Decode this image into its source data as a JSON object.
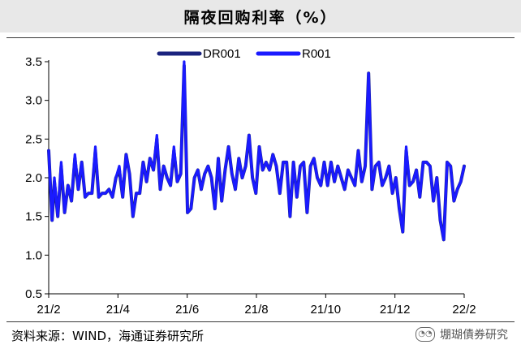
{
  "title": "隔夜回购利率（%）",
  "source": "资料来源：WIND，海通证券研究所",
  "watermark": "堋瑚債券研究",
  "chart_data": {
    "type": "line",
    "x_ticks": [
      "21/2",
      "21/4",
      "21/6",
      "21/8",
      "21/10",
      "21/12",
      "22/2"
    ],
    "y_ticks": [
      "0.5",
      "1.0",
      "1.5",
      "2.0",
      "2.5",
      "3.0",
      "3.5"
    ],
    "ylim": [
      0.5,
      3.5
    ],
    "x_domain": [
      "2021-02-01",
      "2022-02-01"
    ],
    "legend_position": "top-center",
    "x": [
      "2021-02-01",
      "2021-02-04",
      "2021-02-06",
      "2021-02-09",
      "2021-02-12",
      "2021-02-15",
      "2021-02-18",
      "2021-02-21",
      "2021-02-24",
      "2021-02-27",
      "2021-03-02",
      "2021-03-05",
      "2021-03-08",
      "2021-03-11",
      "2021-03-14",
      "2021-03-17",
      "2021-03-20",
      "2021-03-23",
      "2021-03-26",
      "2021-03-29",
      "2021-04-01",
      "2021-04-04",
      "2021-04-07",
      "2021-04-10",
      "2021-04-13",
      "2021-04-16",
      "2021-04-19",
      "2021-04-22",
      "2021-04-25",
      "2021-04-28",
      "2021-05-01",
      "2021-05-04",
      "2021-05-07",
      "2021-05-10",
      "2021-05-13",
      "2021-05-16",
      "2021-05-19",
      "2021-05-22",
      "2021-05-25",
      "2021-05-28",
      "2021-05-31",
      "2021-06-03",
      "2021-06-06",
      "2021-06-09",
      "2021-06-12",
      "2021-06-15",
      "2021-06-18",
      "2021-06-21",
      "2021-06-24",
      "2021-06-27",
      "2021-06-30",
      "2021-07-03",
      "2021-07-06",
      "2021-07-09",
      "2021-07-12",
      "2021-07-15",
      "2021-07-18",
      "2021-07-21",
      "2021-07-24",
      "2021-07-27",
      "2021-07-30",
      "2021-08-02",
      "2021-08-05",
      "2021-08-08",
      "2021-08-11",
      "2021-08-14",
      "2021-08-17",
      "2021-08-20",
      "2021-08-23",
      "2021-08-26",
      "2021-08-29",
      "2021-09-01",
      "2021-09-04",
      "2021-09-07",
      "2021-09-10",
      "2021-09-13",
      "2021-09-16",
      "2021-09-19",
      "2021-09-22",
      "2021-09-25",
      "2021-09-28",
      "2021-10-01",
      "2021-10-04",
      "2021-10-07",
      "2021-10-10",
      "2021-10-13",
      "2021-10-16",
      "2021-10-19",
      "2021-10-22",
      "2021-10-25",
      "2021-10-28",
      "2021-10-31",
      "2021-11-03",
      "2021-11-06",
      "2021-11-09",
      "2021-11-12",
      "2021-11-15",
      "2021-11-18",
      "2021-11-21",
      "2021-11-24",
      "2021-11-27",
      "2021-11-30",
      "2021-12-03",
      "2021-12-06",
      "2021-12-09",
      "2021-12-12",
      "2021-12-15",
      "2021-12-18",
      "2021-12-21",
      "2021-12-24",
      "2021-12-27",
      "2021-12-30",
      "2022-01-02",
      "2022-01-05",
      "2022-01-08",
      "2022-01-11",
      "2022-01-14",
      "2022-01-17",
      "2022-01-20",
      "2022-01-23",
      "2022-01-26",
      "2022-01-29",
      "2022-02-01"
    ],
    "series": [
      {
        "name": "DR001",
        "color": "#1a237e",
        "values": [
          2.35,
          1.45,
          1.95,
          1.5,
          2.15,
          1.55,
          1.9,
          1.7,
          2.25,
          1.85,
          2.2,
          1.75,
          1.8,
          1.8,
          2.35,
          1.75,
          1.8,
          1.8,
          1.85,
          1.75,
          2.0,
          2.1,
          1.75,
          2.3,
          2.05,
          1.5,
          1.8,
          1.8,
          2.2,
          1.95,
          2.25,
          2.1,
          2.5,
          1.85,
          2.15,
          2.0,
          1.9,
          2.35,
          1.95,
          2.05,
          3.45,
          1.55,
          1.6,
          2.0,
          2.1,
          1.85,
          2.05,
          2.15,
          2.0,
          1.6,
          2.25,
          1.7,
          2.1,
          2.4,
          2.05,
          1.85,
          2.25,
          2.0,
          2.15,
          2.55,
          2.0,
          1.8,
          2.4,
          2.1,
          2.2,
          2.1,
          2.3,
          2.15,
          1.8,
          2.2,
          2.2,
          1.5,
          2.2,
          1.75,
          2.15,
          2.2,
          1.55,
          2.15,
          2.25,
          2.0,
          1.9,
          2.2,
          1.9,
          2.2,
          1.95,
          2.15,
          2.0,
          1.85,
          2.1,
          2.0,
          1.9,
          2.35,
          1.95,
          2.15,
          3.35,
          1.85,
          2.15,
          2.2,
          1.9,
          2.0,
          2.15,
          1.8,
          2.0,
          1.6,
          1.3,
          2.35,
          1.9,
          1.95,
          2.1,
          1.75,
          2.2,
          2.2,
          2.15,
          1.7,
          2.0,
          1.45,
          1.2,
          2.2,
          2.15,
          1.7,
          1.85,
          1.95,
          2.15
        ]
      },
      {
        "name": "R001",
        "color": "#1a1aff",
        "values": [
          2.35,
          1.45,
          2.0,
          1.5,
          2.2,
          1.55,
          1.9,
          1.7,
          2.3,
          1.85,
          2.2,
          1.75,
          1.8,
          1.8,
          2.4,
          1.75,
          1.8,
          1.8,
          1.85,
          1.75,
          2.0,
          2.15,
          1.75,
          2.3,
          2.05,
          1.5,
          1.8,
          1.8,
          2.2,
          1.95,
          2.25,
          2.1,
          2.55,
          1.85,
          2.15,
          2.0,
          1.9,
          2.4,
          1.95,
          2.05,
          3.5,
          1.55,
          1.6,
          2.0,
          2.1,
          1.85,
          2.05,
          2.15,
          2.0,
          1.6,
          2.25,
          1.7,
          2.1,
          2.4,
          2.05,
          1.85,
          2.25,
          2.0,
          2.15,
          2.55,
          2.0,
          1.8,
          2.4,
          2.1,
          2.2,
          2.1,
          2.3,
          2.15,
          1.8,
          2.2,
          2.2,
          1.5,
          2.2,
          1.75,
          2.15,
          2.2,
          1.55,
          2.15,
          2.25,
          2.0,
          1.9,
          2.2,
          1.9,
          2.2,
          1.95,
          2.15,
          2.0,
          1.85,
          2.1,
          2.0,
          1.9,
          2.35,
          1.95,
          2.15,
          3.35,
          1.85,
          2.15,
          2.2,
          1.9,
          2.0,
          2.15,
          1.8,
          2.0,
          1.6,
          1.3,
          2.4,
          1.9,
          1.95,
          2.1,
          1.75,
          2.2,
          2.2,
          2.15,
          1.7,
          2.0,
          1.45,
          1.2,
          2.2,
          2.15,
          1.7,
          1.85,
          1.95,
          2.15
        ]
      }
    ]
  }
}
